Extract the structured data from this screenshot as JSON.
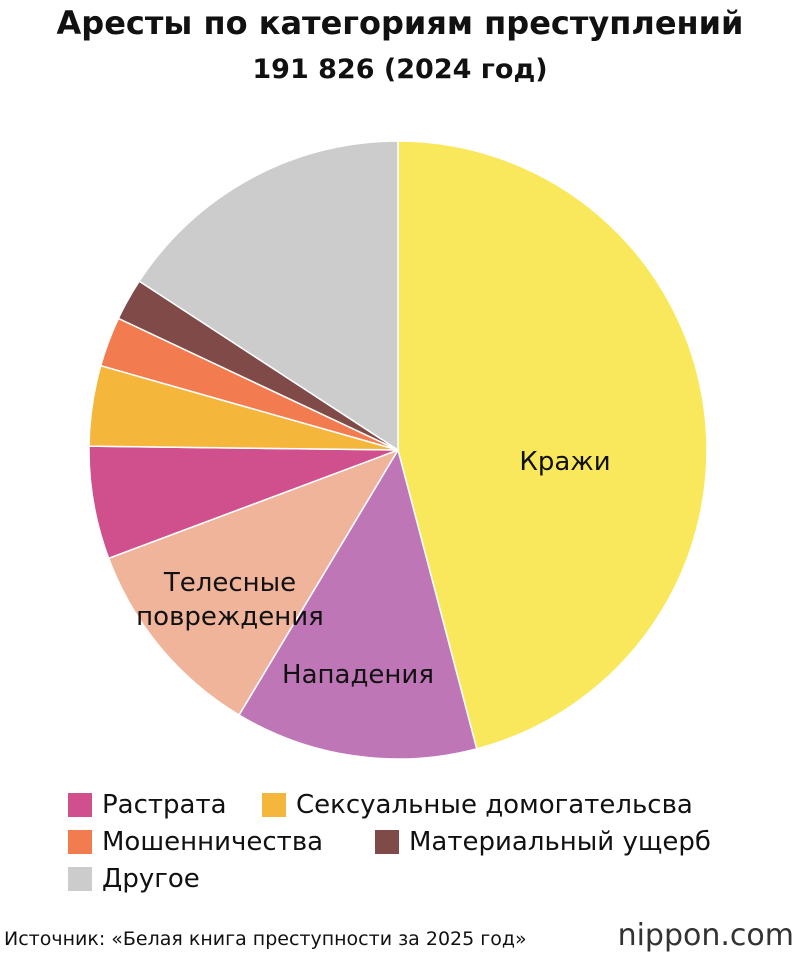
{
  "chart_data": {
    "type": "pie",
    "title": "Аресты по категориям преступлений",
    "subtitle": "191 826 (2024 год)",
    "categories": [
      "Кражи",
      "Нападения",
      "Телесные повреждения",
      "Растрата",
      "Сексуальные домогательсва",
      "Мошенничества",
      "Материальный ущерб",
      "Другое"
    ],
    "values": [
      45.9,
      12.7,
      10.7,
      5.9,
      4.2,
      2.6,
      2.2,
      15.8
    ],
    "colors": [
      "#f9e85c",
      "#bf76b7",
      "#f0b49b",
      "#d0508e",
      "#f4b73c",
      "#f27c50",
      "#7f4a48",
      "#cccccc"
    ],
    "source": "Источник: «Белая книга преступности за 2025 год»",
    "logo": "nippon.com"
  }
}
